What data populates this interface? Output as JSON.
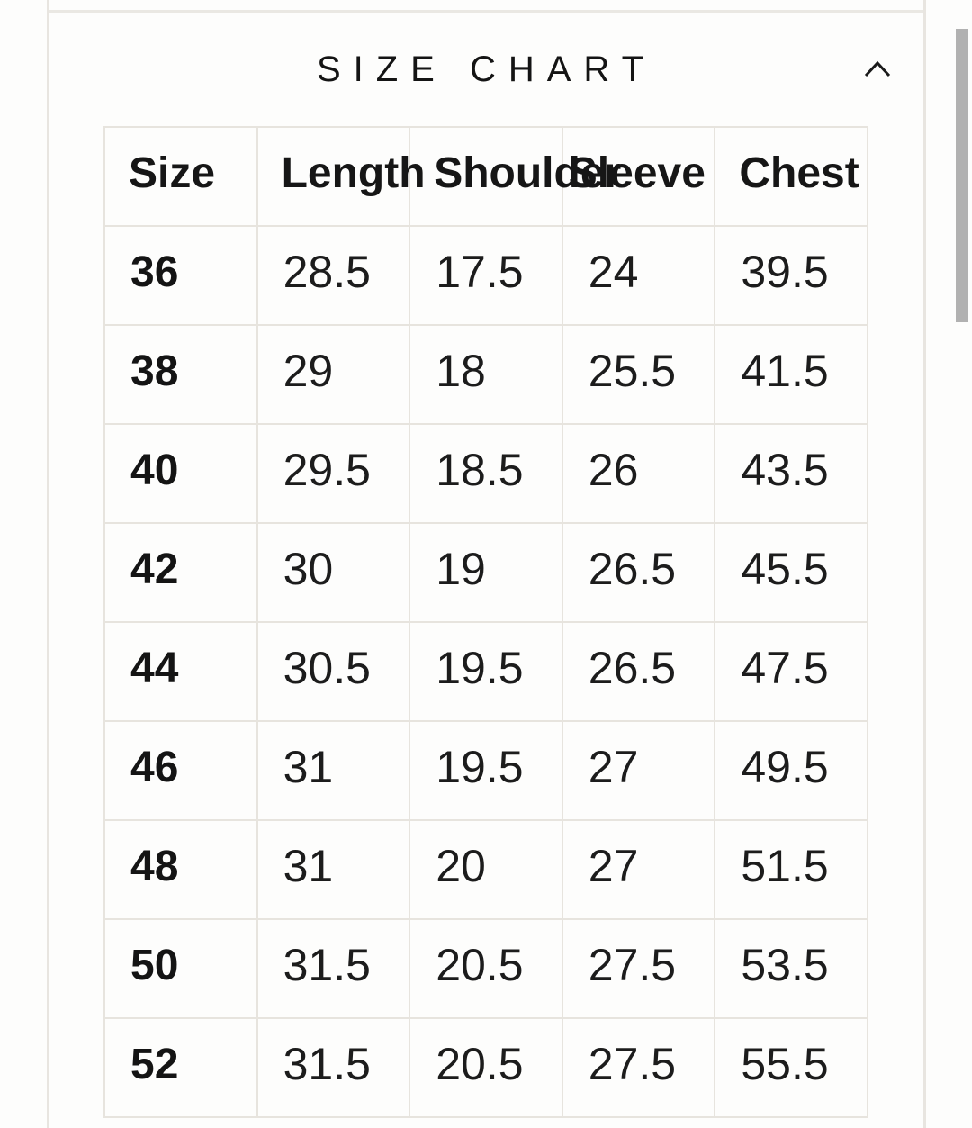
{
  "accordion": {
    "title": "SIZE CHART",
    "state": "expanded",
    "chevron_icon": "chevron-up-icon"
  },
  "colors": {
    "page_background": "#fdfdfc",
    "divider": "#e8e5e0",
    "table_border": "#e7e4de",
    "text": "#161616",
    "scrollbar_thumb": "#b1b1b1"
  },
  "chart_data": {
    "type": "table",
    "title": "SIZE CHART",
    "headers": [
      "Size",
      "Length",
      "Shoulder",
      "Sleeve",
      "Chest"
    ],
    "rows": [
      [
        "36",
        "28.5",
        "17.5",
        "24",
        "39.5"
      ],
      [
        "38",
        "29",
        "18",
        "25.5",
        "41.5"
      ],
      [
        "40",
        "29.5",
        "18.5",
        "26",
        "43.5"
      ],
      [
        "42",
        "30",
        "19",
        "26.5",
        "45.5"
      ],
      [
        "44",
        "30.5",
        "19.5",
        "26.5",
        "47.5"
      ],
      [
        "46",
        "31",
        "19.5",
        "27",
        "49.5"
      ],
      [
        "48",
        "31",
        "20",
        "27",
        "51.5"
      ],
      [
        "50",
        "31.5",
        "20.5",
        "27.5",
        "53.5"
      ],
      [
        "52",
        "31.5",
        "20.5",
        "27.5",
        "55.5"
      ]
    ]
  }
}
